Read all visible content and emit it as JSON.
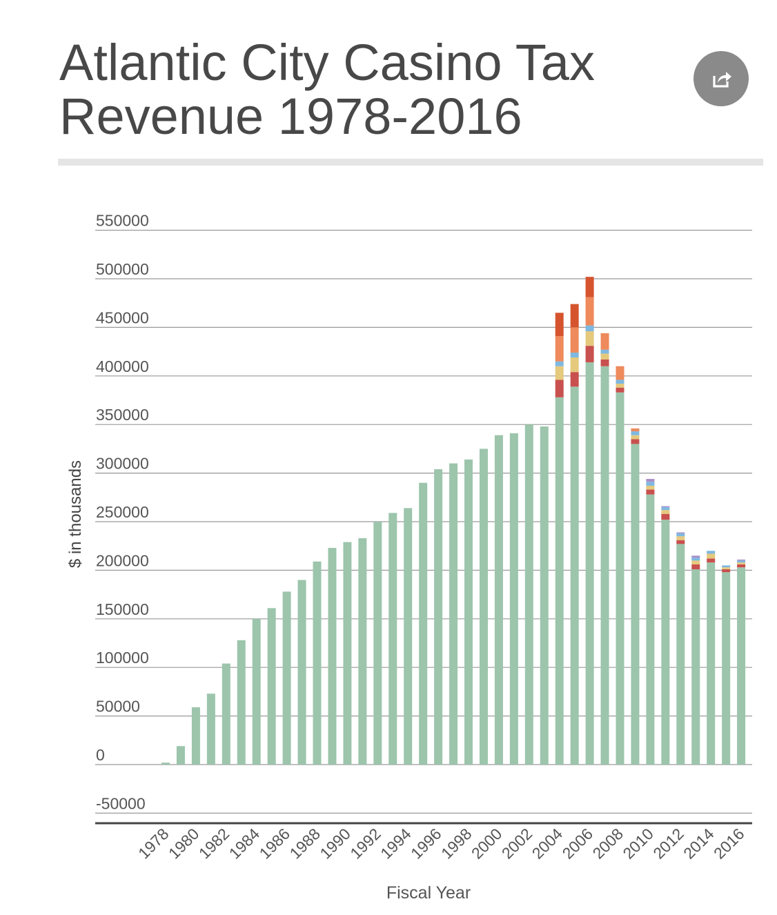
{
  "title": {
    "line1": "Atlantic City Casino Tax",
    "line2": "Revenue 1978-2016"
  },
  "share": {
    "icon": "share-icon",
    "color": "#8a8a8a"
  },
  "colors": {
    "base": "#9cc5ac",
    "segments": [
      "#c8504e",
      "#e5c97d",
      "#7fb8e0",
      "#ee8a5c",
      "#d5542e",
      "#a98ec8"
    ]
  },
  "chart_data": {
    "type": "bar",
    "stacked": true,
    "title": "Atlantic City Casino Tax Revenue 1978-2016",
    "xlabel": "Fiscal Year",
    "ylabel": "$ in thousands",
    "ylim": [
      -50000,
      550000
    ],
    "yticks": [
      550000,
      500000,
      450000,
      400000,
      350000,
      300000,
      250000,
      200000,
      150000,
      100000,
      50000,
      0,
      -50000
    ],
    "xtick_labels": [
      "1978",
      "1980",
      "1982",
      "1984",
      "1986",
      "1988",
      "1990",
      "1992",
      "1994",
      "1996",
      "1998",
      "2000",
      "2002",
      "2004",
      "2006",
      "2008",
      "2010",
      "2012",
      "2014",
      "2016"
    ],
    "categories": [
      "1978",
      "1979",
      "1980",
      "1981",
      "1982",
      "1983",
      "1984",
      "1985",
      "1986",
      "1987",
      "1988",
      "1989",
      "1990",
      "1991",
      "1992",
      "1993",
      "1994",
      "1995",
      "1996",
      "1997",
      "1998",
      "1999",
      "2000",
      "2001",
      "2002",
      "2003",
      "2004",
      "2005",
      "2006",
      "2007",
      "2008",
      "2009",
      "2010",
      "2011",
      "2012",
      "2013",
      "2014",
      "2015",
      "2016"
    ],
    "values": [
      2000,
      19000,
      59000,
      73000,
      104000,
      128000,
      150000,
      161000,
      178000,
      190000,
      209000,
      223000,
      229000,
      233000,
      250000,
      259000,
      264000,
      290000,
      304000,
      310000,
      314000,
      325000,
      339000,
      341000,
      350000,
      348000,
      378000,
      389000,
      414000,
      410000,
      383000,
      330000,
      278000,
      252000,
      227000,
      201000,
      208000,
      198000,
      203000
    ],
    "extra_segments": {
      "2004": [
        18000,
        14000,
        5000,
        26000,
        24000,
        0
      ],
      "2005": [
        15000,
        15000,
        5000,
        26000,
        24000,
        0
      ],
      "2006": [
        17000,
        15000,
        6000,
        29000,
        21000,
        0
      ],
      "2007": [
        7000,
        6000,
        4000,
        17000,
        0,
        0
      ],
      "2008": [
        5000,
        4000,
        4000,
        14000,
        0,
        0
      ],
      "2009": [
        5000,
        4000,
        4000,
        3000,
        0,
        0
      ],
      "2010": [
        5000,
        4000,
        4000,
        0,
        0,
        3000
      ],
      "2011": [
        6000,
        4000,
        3000,
        0,
        0,
        1000
      ],
      "2012": [
        4000,
        4000,
        3000,
        0,
        0,
        1000
      ],
      "2013": [
        5000,
        4000,
        3000,
        0,
        0,
        2000
      ],
      "2014": [
        4000,
        5000,
        3000,
        0,
        0,
        0
      ],
      "2015": [
        3000,
        2000,
        2000,
        0,
        0,
        0
      ],
      "2016": [
        3000,
        2000,
        2000,
        0,
        0,
        1000
      ]
    }
  }
}
